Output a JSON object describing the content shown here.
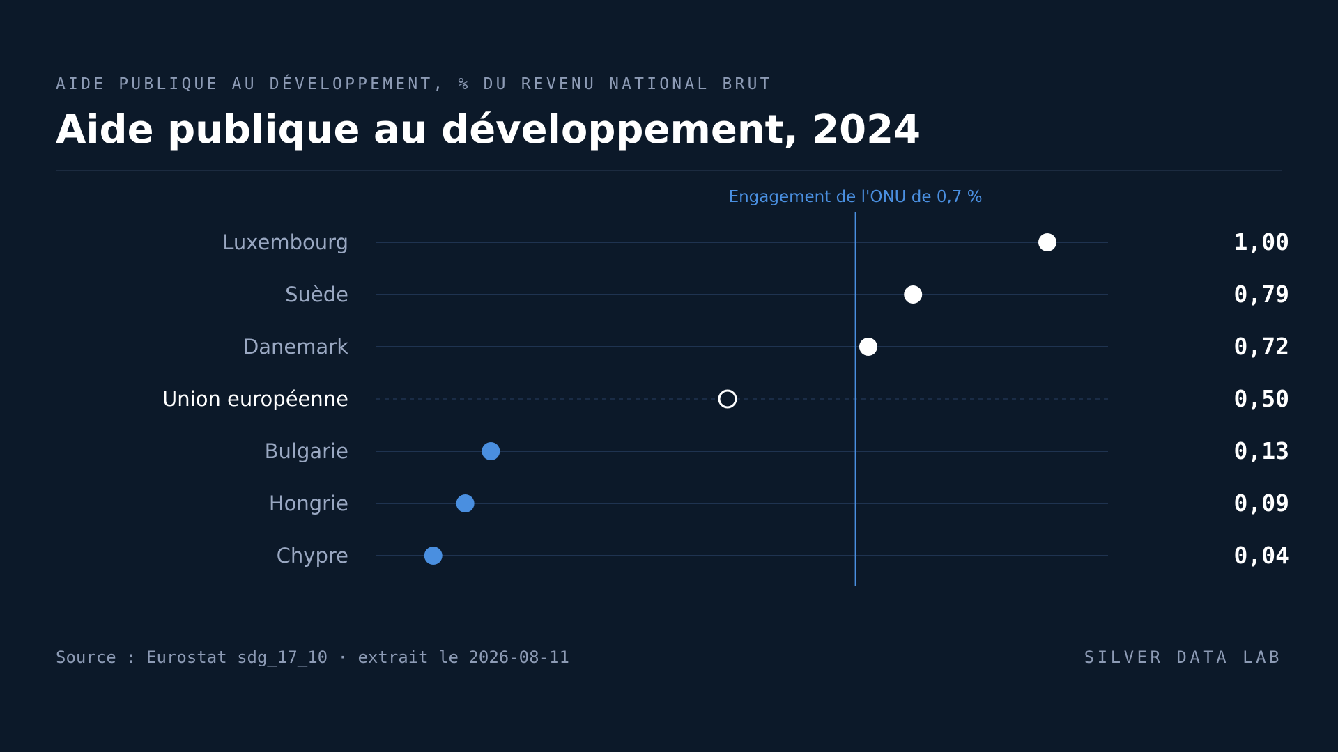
{
  "header": {
    "kicker": "AIDE PUBLIQUE AU DÉVELOPPEMENT, % DU REVENU NATIONAL BRUT",
    "title": "Aide publique au développement, 2024"
  },
  "footer": {
    "source": "Source : Eurostat sdg_17_10 · extrait le 2026-08-11",
    "brand": "SILVER DATA LAB"
  },
  "colors": {
    "background": "#0c1929",
    "above_target": "#ffffff",
    "below_target": "#4a8fe0",
    "reference": "#4a8fe0",
    "track": "#1f3350",
    "label": "#9aa8c2",
    "label_highlight": "#ffffff",
    "value": "#ffffff"
  },
  "chart_data": {
    "type": "dot",
    "xlim": [
      0,
      1.0
    ],
    "categories": [
      "Luxembourg",
      "Suède",
      "Danemark",
      "Union européenne",
      "Bulgarie",
      "Hongrie",
      "Chypre"
    ],
    "values": [
      1.0,
      0.79,
      0.72,
      0.5,
      0.13,
      0.09,
      0.04
    ],
    "value_labels": [
      "1,00",
      "0,79",
      "0,72",
      "0,50",
      "0,13",
      "0,09",
      "0,04"
    ],
    "highlight": "Union européenne",
    "reference_line": {
      "value": 0.7,
      "label": "Engagement de l'ONU de 0,7 %"
    }
  }
}
